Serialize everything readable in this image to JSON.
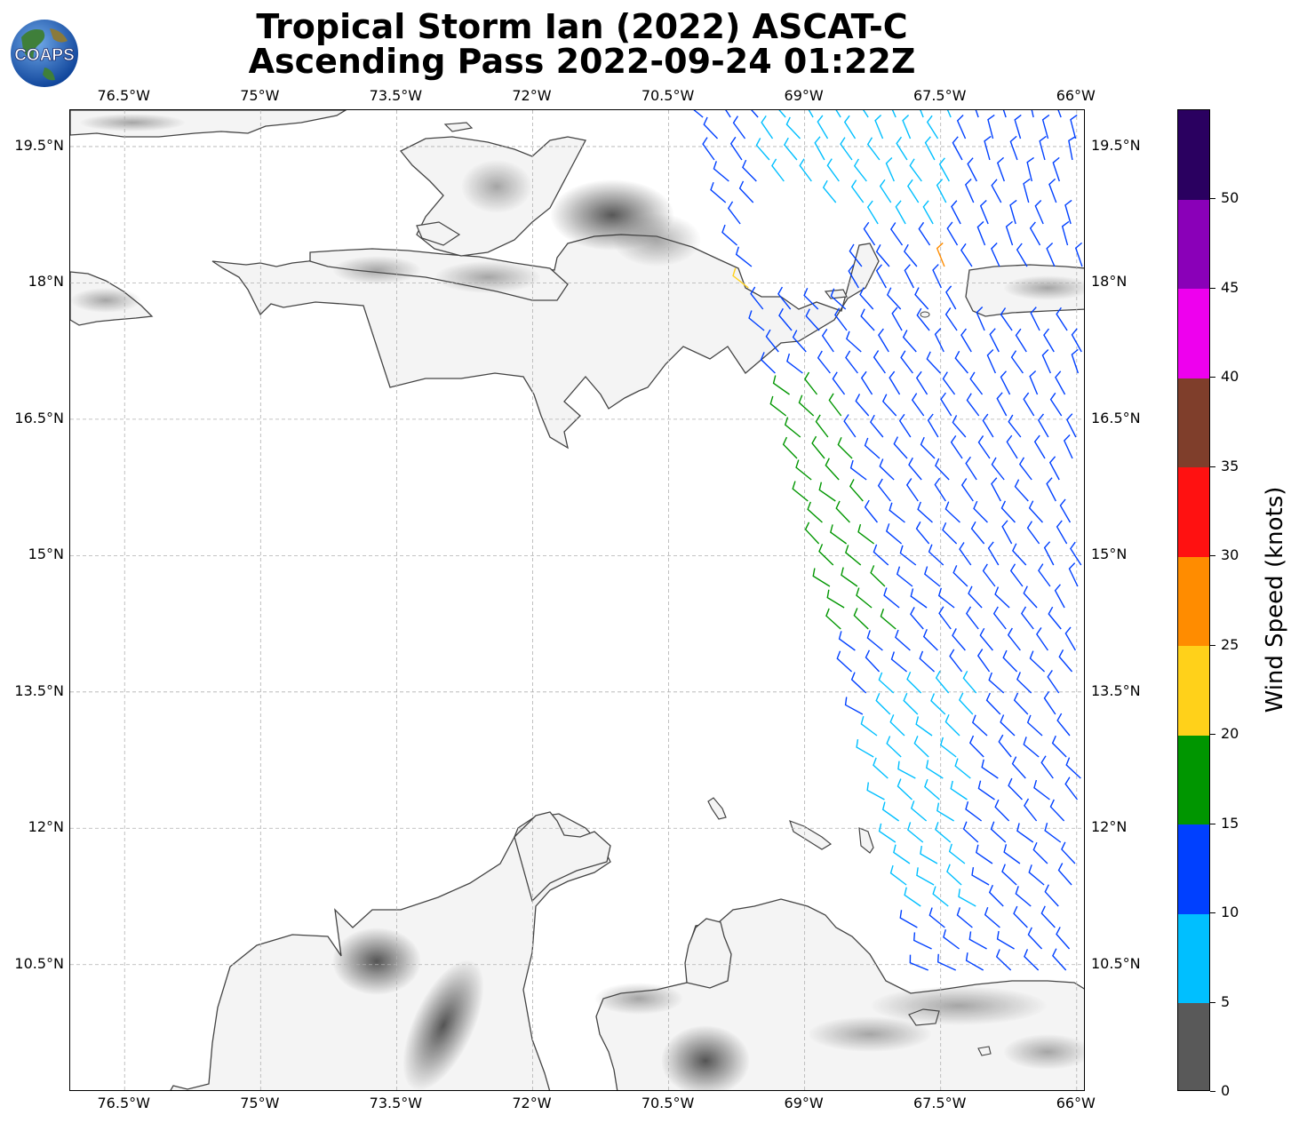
{
  "title": {
    "line1": "Tropical Storm Ian (2022) ASCAT-C",
    "line2": "Ascending Pass 2022-09-24 01:22Z"
  },
  "logo": {
    "text": "COAPS"
  },
  "map": {
    "lon_range": [
      -77.1,
      -65.9
    ],
    "lat_range": [
      9.1,
      19.9
    ],
    "lon_ticks": [
      {
        "value": -76.5,
        "label": "76.5°W"
      },
      {
        "value": -75.0,
        "label": "75°W"
      },
      {
        "value": -73.5,
        "label": "73.5°W"
      },
      {
        "value": -72.0,
        "label": "72°W"
      },
      {
        "value": -70.5,
        "label": "70.5°W"
      },
      {
        "value": -69.0,
        "label": "69°W"
      },
      {
        "value": -67.5,
        "label": "67.5°W"
      },
      {
        "value": -66.0,
        "label": "66°W"
      }
    ],
    "lat_ticks": [
      {
        "value": 19.5,
        "label": "19.5°N"
      },
      {
        "value": 18.0,
        "label": "18°N"
      },
      {
        "value": 16.5,
        "label": "16.5°N"
      },
      {
        "value": 15.0,
        "label": "15°N"
      },
      {
        "value": 13.5,
        "label": "13.5°N"
      },
      {
        "value": 12.0,
        "label": "12°N"
      },
      {
        "value": 10.5,
        "label": "10.5°N"
      }
    ],
    "land_color": "#f4f4f4",
    "coast_color": "#444444",
    "grid_color": "#b0b0b0"
  },
  "colorbar": {
    "label": "Wind Speed (knots)",
    "bins": [
      {
        "min": 0,
        "max": 5,
        "color": "#595959"
      },
      {
        "min": 5,
        "max": 10,
        "color": "#00bfff"
      },
      {
        "min": 10,
        "max": 15,
        "color": "#0040ff"
      },
      {
        "min": 15,
        "max": 20,
        "color": "#009600"
      },
      {
        "min": 20,
        "max": 25,
        "color": "#ffd11a"
      },
      {
        "min": 25,
        "max": 30,
        "color": "#ff8c00"
      },
      {
        "min": 30,
        "max": 35,
        "color": "#ff1111"
      },
      {
        "min": 35,
        "max": 40,
        "color": "#7f3e2b"
      },
      {
        "min": 40,
        "max": 45,
        "color": "#ee00ee"
      },
      {
        "min": 45,
        "max": 50,
        "color": "#8a00b8"
      },
      {
        "min": 50,
        "max": 55,
        "color": "#2a0060"
      }
    ],
    "tick_labels": [
      "0",
      "5",
      "10",
      "15",
      "20",
      "25",
      "30",
      "35",
      "40",
      "45",
      "50"
    ]
  }
}
